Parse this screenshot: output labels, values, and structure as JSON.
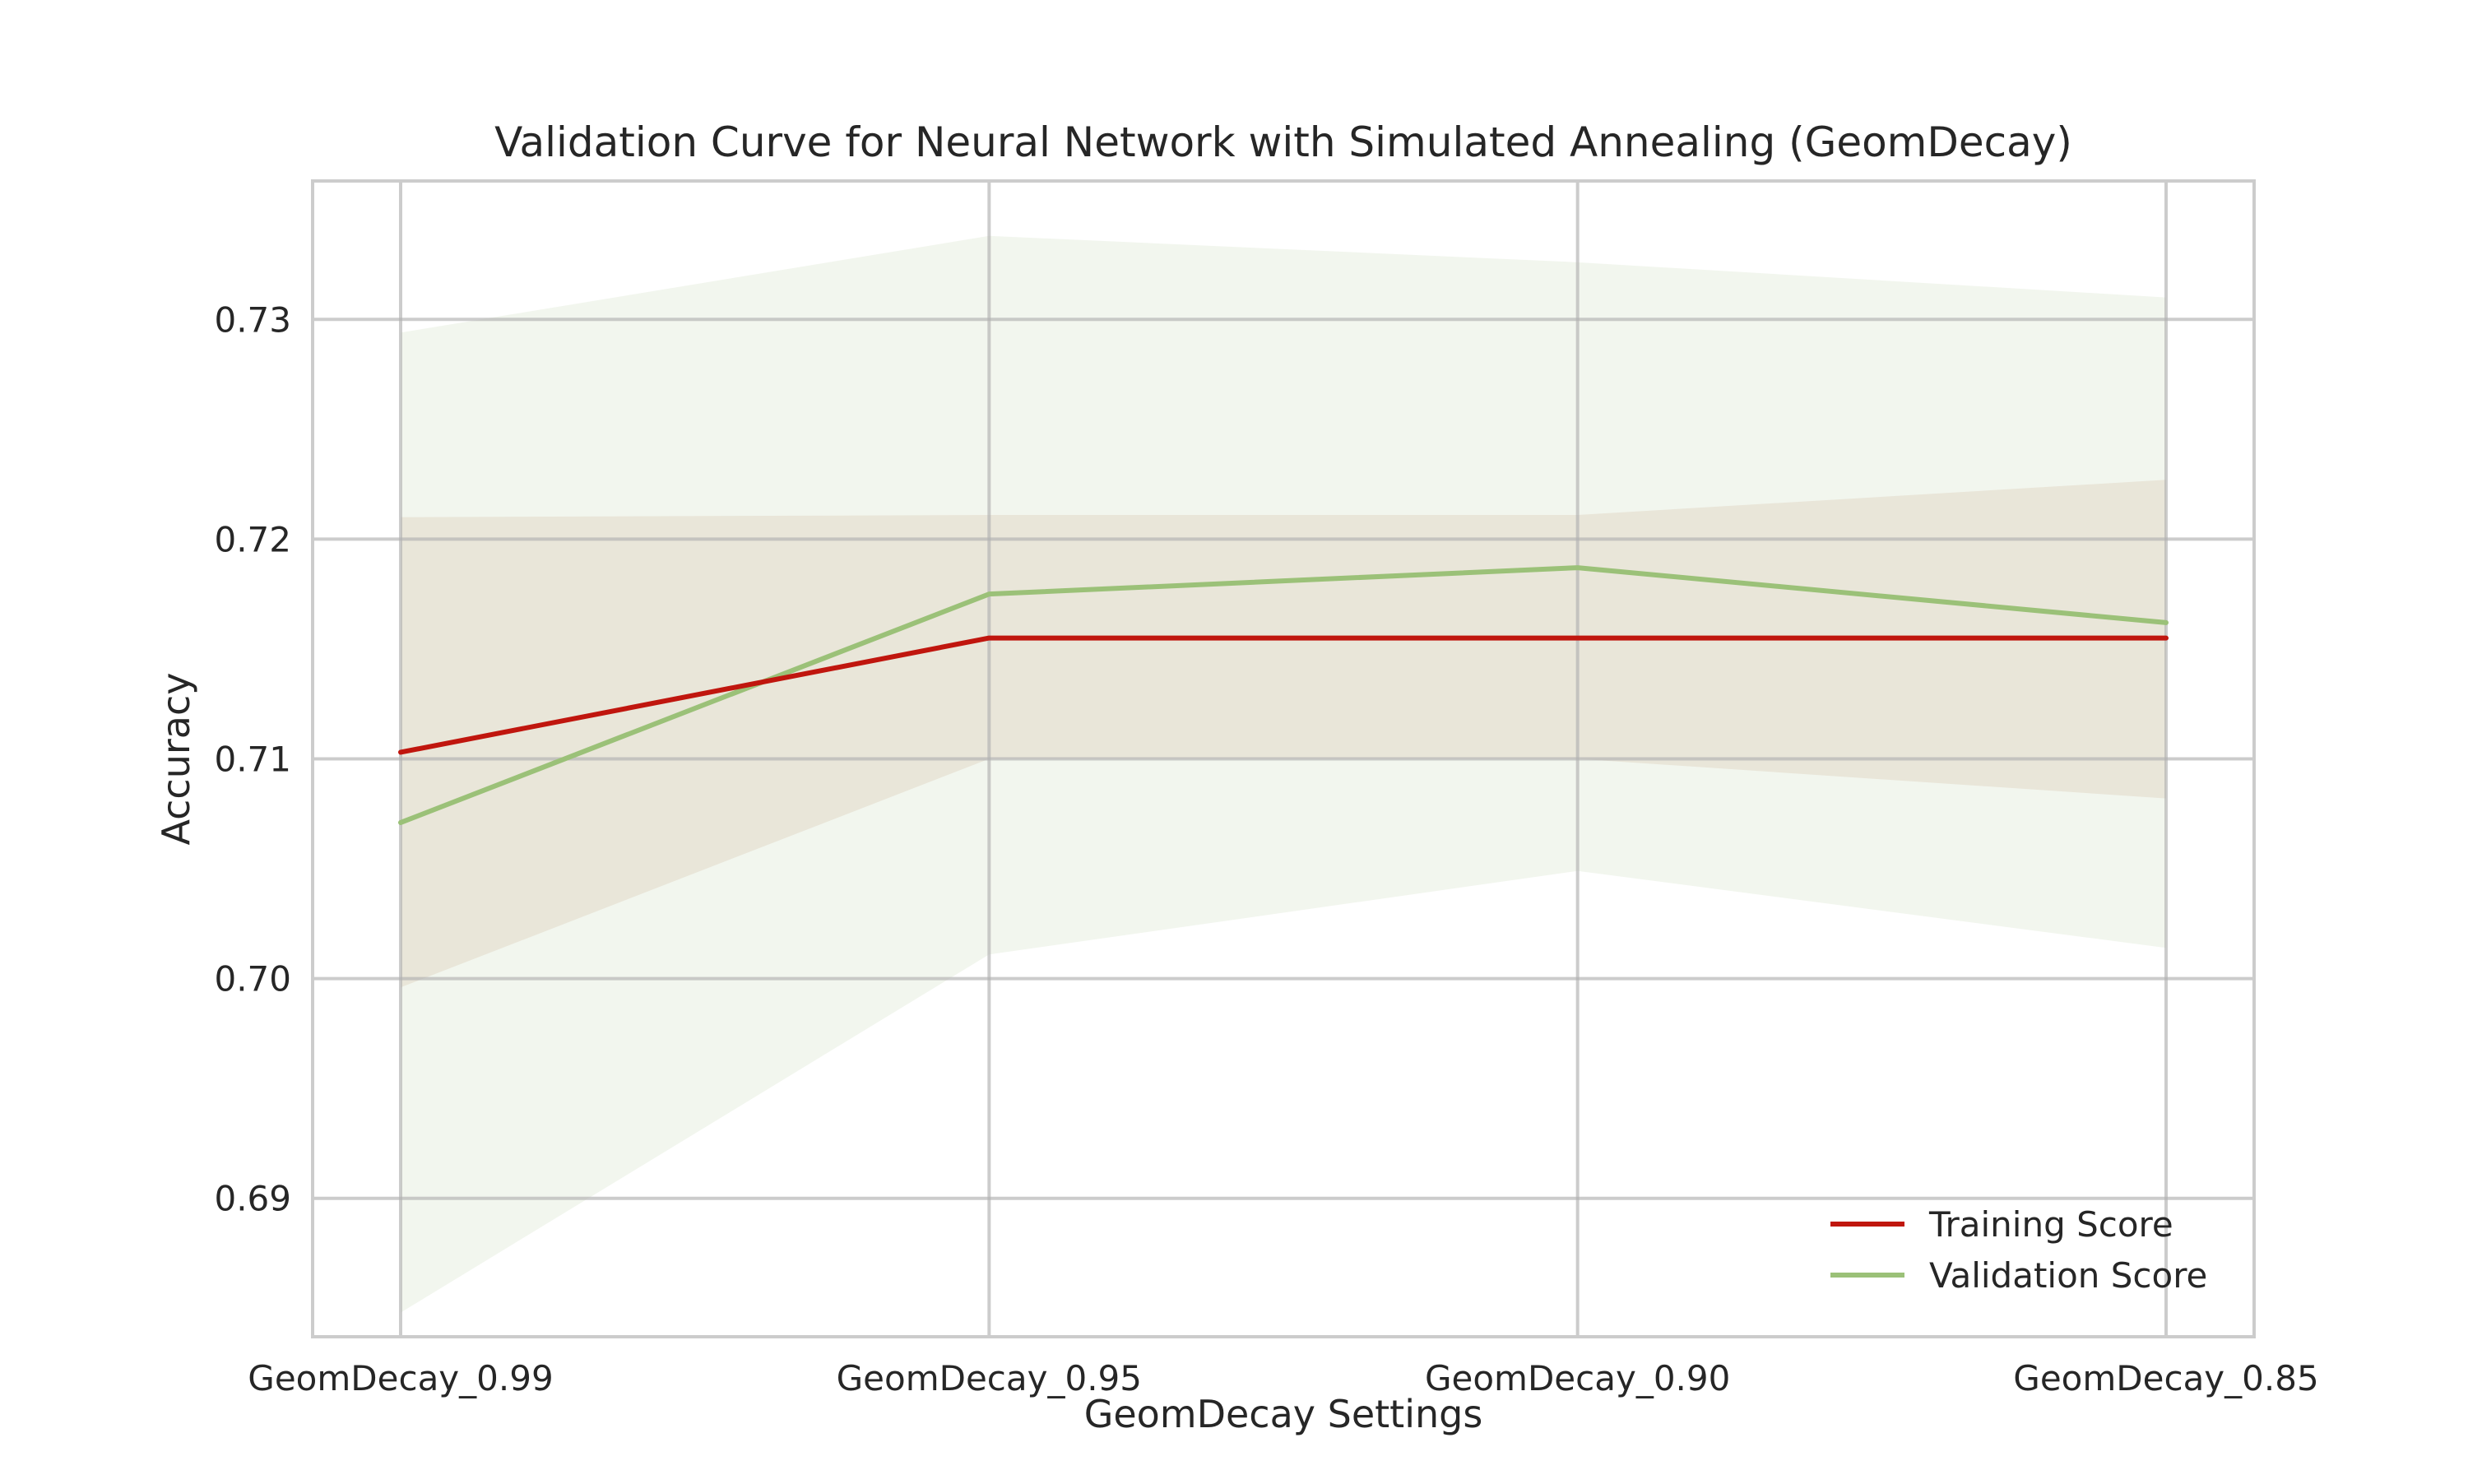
{
  "chart_data": {
    "type": "line",
    "title": "Validation Curve for Neural Network with Simulated Annealing (GeomDecay)",
    "xlabel": "GeomDecay Settings",
    "ylabel": "Accuracy",
    "categories": [
      "GeomDecay_0.99",
      "GeomDecay_0.95",
      "GeomDecay_0.90",
      "GeomDecay_0.85"
    ],
    "ylim": [
      0.6837,
      0.7363
    ],
    "yticks": [
      0.69,
      0.7,
      0.71,
      0.72,
      0.73
    ],
    "ytick_labels": [
      "0.69",
      "0.70",
      "0.71",
      "0.72",
      "0.73"
    ],
    "grid": true,
    "legend_position": "lower-right",
    "series": [
      {
        "name": "Training Score",
        "color": "#c0160e",
        "band_color": "#d9b8a3",
        "values": [
          0.7103,
          0.7155,
          0.7155,
          0.7155
        ],
        "lower": [
          0.6996,
          0.71,
          0.71,
          0.7082
        ],
        "upper": [
          0.721,
          0.7211,
          0.7211,
          0.7227
        ]
      },
      {
        "name": "Validation Score",
        "color": "#9bc178",
        "band_color": "#e8efe0",
        "values": [
          0.7071,
          0.7175,
          0.7187,
          0.7162
        ],
        "lower": [
          0.6848,
          0.7011,
          0.7049,
          0.7014
        ],
        "upper": [
          0.7294,
          0.7338,
          0.7326,
          0.731
        ]
      }
    ]
  }
}
